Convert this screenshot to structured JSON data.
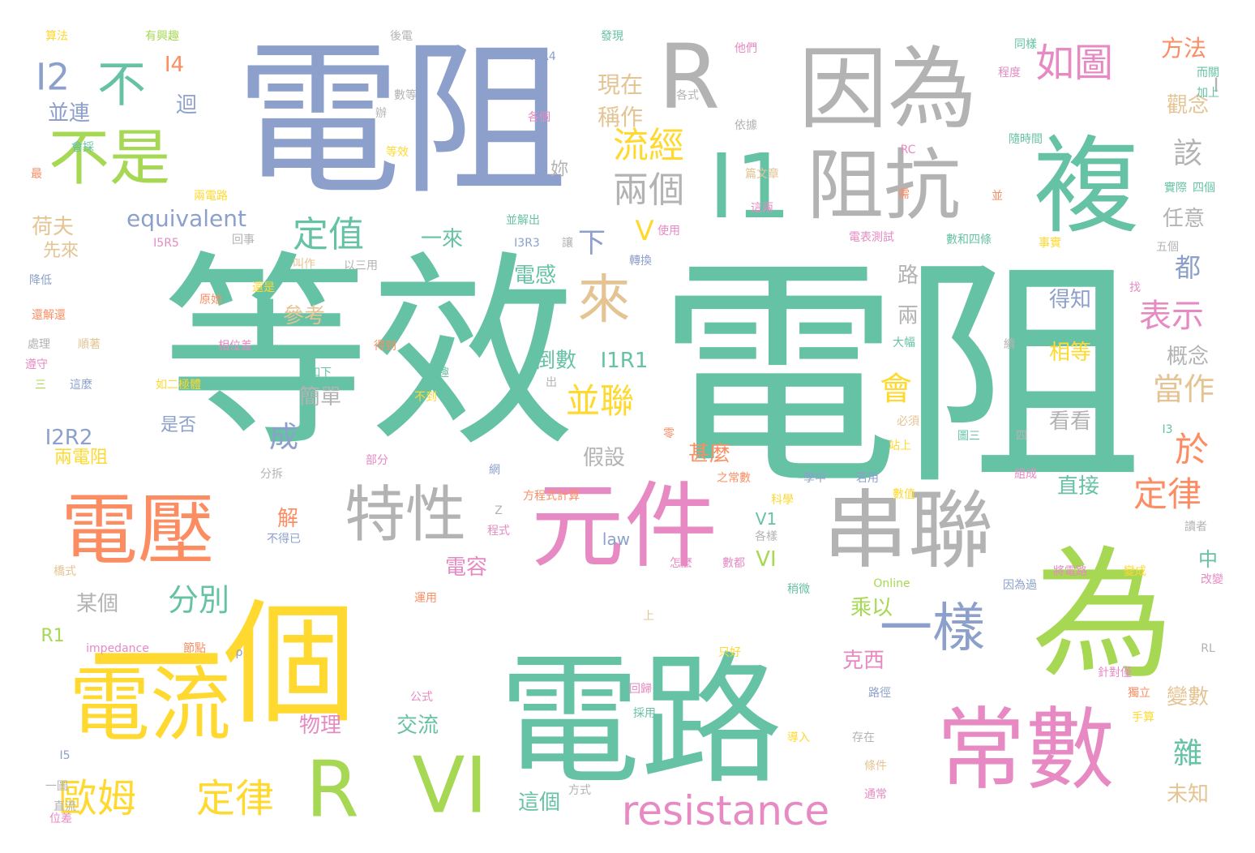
{
  "palette": {
    "green": "#66c2a5",
    "orange": "#fc8d62",
    "blue": "#8da0cb",
    "pink": "#e78ac3",
    "lime": "#a6d854",
    "yellow": "#ffd92f",
    "tan": "#e5c494",
    "grey": "#b3b3b3"
  },
  "words": [
    {
      "text": "電阻",
      "weight": 100,
      "color": "green"
    },
    {
      "text": "等效",
      "weight": 96,
      "color": "green"
    },
    {
      "text": "電阻",
      "weight": 90,
      "color": "blue"
    },
    {
      "text": "電路",
      "weight": 82,
      "color": "green"
    },
    {
      "text": "一個",
      "weight": 74,
      "color": "yellow"
    },
    {
      "text": "為",
      "weight": 64,
      "color": "lime"
    },
    {
      "text": "R",
      "weight": 58,
      "color": "grey"
    },
    {
      "text": "因為",
      "weight": 58,
      "color": "grey"
    },
    {
      "text": "複",
      "weight": 56,
      "color": "green"
    },
    {
      "text": "I1",
      "weight": 54,
      "color": "green"
    },
    {
      "text": "阻抗",
      "weight": 52,
      "color": "grey"
    },
    {
      "text": "元件",
      "weight": 54,
      "color": "pink"
    },
    {
      "text": "串聯",
      "weight": 52,
      "color": "grey"
    },
    {
      "text": "電壓",
      "weight": 50,
      "color": "orange"
    },
    {
      "text": "常數",
      "weight": 50,
      "color": "pink"
    },
    {
      "text": "電流",
      "weight": 48,
      "color": "yellow"
    },
    {
      "text": "R",
      "weight": 42,
      "color": "lime"
    },
    {
      "text": "VI",
      "weight": 42,
      "color": "lime"
    },
    {
      "text": "特性",
      "weight": 36,
      "color": "grey"
    },
    {
      "text": "不是",
      "weight": 34,
      "color": "lime"
    },
    {
      "text": "一樣",
      "weight": 32,
      "color": "blue"
    },
    {
      "text": "來",
      "weight": 30,
      "color": "tan"
    },
    {
      "text": "不",
      "weight": 28,
      "color": "green"
    },
    {
      "text": "resistance",
      "weight": 28,
      "color": "pink"
    },
    {
      "text": "如圖",
      "weight": 24,
      "color": "pink"
    },
    {
      "text": "歐姆",
      "weight": 24,
      "color": "yellow"
    },
    {
      "text": "定律",
      "weight": 24,
      "color": "yellow"
    },
    {
      "text": "I2",
      "weight": 22,
      "color": "blue"
    },
    {
      "text": "流經",
      "weight": 22,
      "color": "yellow"
    },
    {
      "text": "兩個",
      "weight": 22,
      "color": "grey"
    },
    {
      "text": "定值",
      "weight": 22,
      "color": "green"
    },
    {
      "text": "並聯",
      "weight": 22,
      "color": "yellow"
    },
    {
      "text": "表示",
      "weight": 22,
      "color": "pink"
    },
    {
      "text": "當作",
      "weight": 22,
      "color": "tan"
    },
    {
      "text": "定律",
      "weight": 22,
      "color": "orange"
    },
    {
      "text": "於",
      "weight": 20,
      "color": "orange"
    },
    {
      "text": "會",
      "weight": 20,
      "color": "yellow"
    },
    {
      "text": "分別",
      "weight": 20,
      "color": "green"
    },
    {
      "text": "雜",
      "weight": 20,
      "color": "green"
    },
    {
      "text": "該",
      "weight": 20,
      "color": "grey"
    },
    {
      "text": "成",
      "weight": 20,
      "color": "blue"
    },
    {
      "text": "下",
      "weight": 18,
      "color": "blue"
    },
    {
      "text": "V",
      "weight": 18,
      "color": "yellow"
    },
    {
      "text": "都",
      "weight": 18,
      "color": "blue"
    },
    {
      "text": "equivalent",
      "weight": 16,
      "color": "blue"
    },
    {
      "text": "現在",
      "weight": 16,
      "color": "tan"
    },
    {
      "text": "稱作",
      "weight": 16,
      "color": "tan"
    },
    {
      "text": "方法",
      "weight": 16,
      "color": "orange"
    },
    {
      "text": "觀念",
      "weight": 16,
      "color": "tan"
    },
    {
      "text": "I4",
      "weight": 16,
      "color": "orange"
    },
    {
      "text": "迴",
      "weight": 16,
      "color": "blue"
    },
    {
      "text": "並連",
      "weight": 16,
      "color": "blue"
    },
    {
      "text": "荷夫",
      "weight": 16,
      "color": "tan"
    },
    {
      "text": "一來",
      "weight": 16,
      "color": "green"
    },
    {
      "text": "電感",
      "weight": 16,
      "color": "green"
    },
    {
      "text": "任意",
      "weight": 16,
      "color": "grey"
    },
    {
      "text": "得知",
      "weight": 16,
      "color": "blue"
    },
    {
      "text": "相等",
      "weight": 16,
      "color": "yellow"
    },
    {
      "text": "看看",
      "weight": 16,
      "color": "grey"
    },
    {
      "text": "概念",
      "weight": 16,
      "color": "grey"
    },
    {
      "text": "直接",
      "weight": 16,
      "color": "green"
    },
    {
      "text": "I1R1",
      "weight": 16,
      "color": "green"
    },
    {
      "text": "倒數",
      "weight": 16,
      "color": "green"
    },
    {
      "text": "I2R2",
      "weight": 16,
      "color": "blue"
    },
    {
      "text": "簡單",
      "weight": 16,
      "color": "grey"
    },
    {
      "text": "假設",
      "weight": 16,
      "color": "grey"
    },
    {
      "text": "甚麼",
      "weight": 16,
      "color": "orange"
    },
    {
      "text": "參考",
      "weight": 16,
      "color": "tan"
    },
    {
      "text": "路",
      "weight": 16,
      "color": "grey"
    },
    {
      "text": "兩",
      "weight": 16,
      "color": "grey"
    },
    {
      "text": "解",
      "weight": 16,
      "color": "orange"
    },
    {
      "text": "電容",
      "weight": 16,
      "color": "pink"
    },
    {
      "text": "某個",
      "weight": 16,
      "color": "grey"
    },
    {
      "text": "VI",
      "weight": 16,
      "color": "lime"
    },
    {
      "text": "乘以",
      "weight": 16,
      "color": "lime"
    },
    {
      "text": "克西",
      "weight": 16,
      "color": "pink"
    },
    {
      "text": "物理",
      "weight": 16,
      "color": "pink"
    },
    {
      "text": "交流",
      "weight": 16,
      "color": "green"
    },
    {
      "text": "這個",
      "weight": 16,
      "color": "green"
    },
    {
      "text": "變數",
      "weight": 16,
      "color": "tan"
    },
    {
      "text": "未知",
      "weight": 16,
      "color": "tan"
    },
    {
      "text": "中",
      "weight": 14,
      "color": "green"
    },
    {
      "text": "R1",
      "weight": 14,
      "color": "lime"
    },
    {
      "text": "V1",
      "weight": 12,
      "color": "green"
    },
    {
      "text": "law",
      "weight": 12,
      "color": "blue"
    },
    {
      "text": "先來",
      "weight": 12,
      "color": "tan"
    },
    {
      "text": "兩電阻",
      "weight": 12,
      "color": "yellow"
    },
    {
      "text": "是否",
      "weight": 12,
      "color": "blue"
    },
    {
      "text": "妳",
      "weight": 12,
      "color": "grey"
    },
    {
      "text": "I",
      "weight": 12,
      "color": "grey"
    },
    {
      "text": "算法",
      "weight": 8,
      "color": "yellow"
    },
    {
      "text": "有興趣",
      "weight": 8,
      "color": "lime"
    },
    {
      "text": "後電",
      "weight": 8,
      "color": "grey"
    },
    {
      "text": "發現",
      "weight": 8,
      "color": "green"
    },
    {
      "text": "他們",
      "weight": 8,
      "color": "pink"
    },
    {
      "text": "同樣",
      "weight": 8,
      "color": "green"
    },
    {
      "text": "程度",
      "weight": 8,
      "color": "pink"
    },
    {
      "text": "而關",
      "weight": 8,
      "color": "green"
    },
    {
      "text": "加上",
      "weight": 8,
      "color": "green"
    },
    {
      "text": "I4R4",
      "weight": 8,
      "color": "blue"
    },
    {
      "text": "數等",
      "weight": 8,
      "color": "grey"
    },
    {
      "text": "各式",
      "weight": 8,
      "color": "grey"
    },
    {
      "text": "各個",
      "weight": 8,
      "color": "pink"
    },
    {
      "text": "依據",
      "weight": 8,
      "color": "grey"
    },
    {
      "text": "隨時間",
      "weight": 8,
      "color": "green"
    },
    {
      "text": "會採",
      "weight": 8,
      "color": "green"
    },
    {
      "text": "等效",
      "weight": 8,
      "color": "yellow"
    },
    {
      "text": "RC",
      "weight": 8,
      "color": "pink"
    },
    {
      "text": "篇文章",
      "weight": 8,
      "color": "tan"
    },
    {
      "text": "實際",
      "weight": 8,
      "color": "green"
    },
    {
      "text": "四個",
      "weight": 8,
      "color": "green"
    },
    {
      "text": "兩電路",
      "weight": 8,
      "color": "yellow"
    },
    {
      "text": "這兩",
      "weight": 8,
      "color": "pink"
    },
    {
      "text": "並",
      "weight": 8,
      "color": "orange"
    },
    {
      "text": "並解出",
      "weight": 8,
      "color": "green"
    },
    {
      "text": "I3R3",
      "weight": 8,
      "color": "blue"
    },
    {
      "text": "使用",
      "weight": 8,
      "color": "pink"
    },
    {
      "text": "I5R5",
      "weight": 8,
      "color": "pink"
    },
    {
      "text": "回事",
      "weight": 8,
      "color": "grey"
    },
    {
      "text": "電表測試",
      "weight": 8,
      "color": "pink"
    },
    {
      "text": "數和四條",
      "weight": 8,
      "color": "green"
    },
    {
      "text": "事實",
      "weight": 8,
      "color": "yellow"
    },
    {
      "text": "五個",
      "weight": 8,
      "color": "grey"
    },
    {
      "text": "以三用",
      "weight": 8,
      "color": "grey"
    },
    {
      "text": "叫作",
      "weight": 8,
      "color": "tan"
    },
    {
      "text": "轉換",
      "weight": 8,
      "color": "blue"
    },
    {
      "text": "降低",
      "weight": 8,
      "color": "blue"
    },
    {
      "text": "原始",
      "weight": 8,
      "color": "orange"
    },
    {
      "text": "還是",
      "weight": 8,
      "color": "yellow"
    },
    {
      "text": "還解還",
      "weight": 8,
      "color": "orange"
    },
    {
      "text": "處理",
      "weight": 8,
      "color": "grey"
    },
    {
      "text": "順著",
      "weight": 8,
      "color": "tan"
    },
    {
      "text": "相位差",
      "weight": 8,
      "color": "pink"
    },
    {
      "text": "得到",
      "weight": 8,
      "color": "orange"
    },
    {
      "text": "大幅",
      "weight": 8,
      "color": "green"
    },
    {
      "text": "遵守",
      "weight": 8,
      "color": "pink"
    },
    {
      "text": "三",
      "weight": 8,
      "color": "lime"
    },
    {
      "text": "這麼",
      "weight": 8,
      "color": "blue"
    },
    {
      "text": "如二極體",
      "weight": 8,
      "color": "yellow"
    },
    {
      "text": "如下",
      "weight": 8,
      "color": "green"
    },
    {
      "text": "有趣",
      "weight": 8,
      "color": "green"
    },
    {
      "text": "出",
      "weight": 8,
      "color": "grey"
    },
    {
      "text": "不到",
      "weight": 8,
      "color": "yellow"
    },
    {
      "text": "必須",
      "weight": 8,
      "color": "tan"
    },
    {
      "text": "站上",
      "weight": 8,
      "color": "yellow"
    },
    {
      "text": "圖三",
      "weight": 8,
      "color": "green"
    },
    {
      "text": "四",
      "weight": 8,
      "color": "grey"
    },
    {
      "text": "I3",
      "weight": 8,
      "color": "green"
    },
    {
      "text": "分拆",
      "weight": 8,
      "color": "grey"
    },
    {
      "text": "部分",
      "weight": 8,
      "color": "pink"
    },
    {
      "text": "網",
      "weight": 8,
      "color": "blue"
    },
    {
      "text": "方程式計算",
      "weight": 8,
      "color": "orange"
    },
    {
      "text": "科學",
      "weight": 8,
      "color": "yellow"
    },
    {
      "text": "之常數",
      "weight": 8,
      "color": "orange"
    },
    {
      "text": "學中",
      "weight": 8,
      "color": "blue"
    },
    {
      "text": "若用",
      "weight": 8,
      "color": "blue"
    },
    {
      "text": "數值",
      "weight": 8,
      "color": "yellow"
    },
    {
      "text": "組成",
      "weight": 8,
      "color": "pink"
    },
    {
      "text": "程式",
      "weight": 8,
      "color": "pink"
    },
    {
      "text": "各樣",
      "weight": 8,
      "color": "grey"
    },
    {
      "text": "不得已",
      "weight": 8,
      "color": "blue"
    },
    {
      "text": "橋式",
      "weight": 8,
      "color": "tan"
    },
    {
      "text": "怎麼",
      "weight": 8,
      "color": "pink"
    },
    {
      "text": "數都",
      "weight": 8,
      "color": "pink"
    },
    {
      "text": "稍微",
      "weight": 8,
      "color": "green"
    },
    {
      "text": "Online",
      "weight": 8,
      "color": "lime"
    },
    {
      "text": "因為過",
      "weight": 8,
      "color": "blue"
    },
    {
      "text": "將電路",
      "weight": 8,
      "color": "pink"
    },
    {
      "text": "變成",
      "weight": 8,
      "color": "yellow"
    },
    {
      "text": "改變",
      "weight": 8,
      "color": "pink"
    },
    {
      "text": "讀者",
      "weight": 8,
      "color": "grey"
    },
    {
      "text": "運用",
      "weight": 8,
      "color": "orange"
    },
    {
      "text": "上",
      "weight": 8,
      "color": "tan"
    },
    {
      "text": "impedance",
      "weight": 8,
      "color": "pink"
    },
    {
      "text": "節點",
      "weight": 8,
      "color": "orange"
    },
    {
      "text": "ρ",
      "weight": 8,
      "color": "blue"
    },
    {
      "text": "只好",
      "weight": 8,
      "color": "yellow"
    },
    {
      "text": "RL",
      "weight": 8,
      "color": "grey"
    },
    {
      "text": "針對僅",
      "weight": 8,
      "color": "pink"
    },
    {
      "text": "回歸",
      "weight": 8,
      "color": "pink"
    },
    {
      "text": "採用",
      "weight": 8,
      "color": "green"
    },
    {
      "text": "公式",
      "weight": 8,
      "color": "pink"
    },
    {
      "text": "路徑",
      "weight": 8,
      "color": "blue"
    },
    {
      "text": "獨立",
      "weight": 8,
      "color": "orange"
    },
    {
      "text": "手算",
      "weight": 8,
      "color": "yellow"
    },
    {
      "text": "導入",
      "weight": 8,
      "color": "yellow"
    },
    {
      "text": "存在",
      "weight": 8,
      "color": "grey"
    },
    {
      "text": "條件",
      "weight": 8,
      "color": "tan"
    },
    {
      "text": "I5",
      "weight": 8,
      "color": "blue"
    },
    {
      "text": "一圖",
      "weight": 8,
      "color": "grey"
    },
    {
      "text": "直流",
      "weight": 8,
      "color": "grey"
    },
    {
      "text": "方式",
      "weight": 8,
      "color": "grey"
    },
    {
      "text": "通常",
      "weight": 8,
      "color": "pink"
    },
    {
      "text": "位差",
      "weight": 8,
      "color": "pink"
    },
    {
      "text": "最",
      "weight": 8,
      "color": "orange"
    },
    {
      "text": "辦",
      "weight": 8,
      "color": "grey"
    },
    {
      "text": "找",
      "weight": 8,
      "color": "pink"
    },
    {
      "text": "續",
      "weight": 8,
      "color": "grey"
    },
    {
      "text": "零",
      "weight": 8,
      "color": "orange"
    },
    {
      "text": "需",
      "weight": 8,
      "color": "orange"
    },
    {
      "text": "讓",
      "weight": 8,
      "color": "grey"
    },
    {
      "text": "Z",
      "weight": 8,
      "color": "grey"
    }
  ]
}
